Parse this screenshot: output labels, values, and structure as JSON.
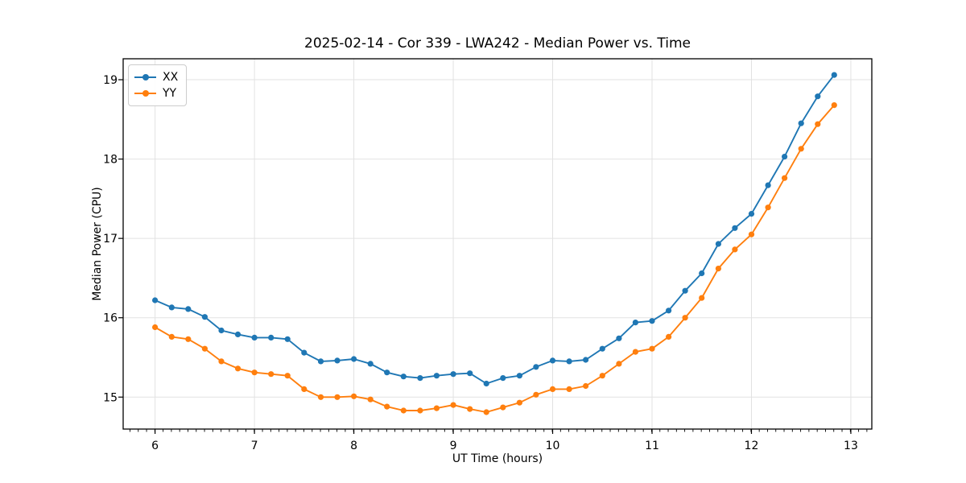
{
  "chart_data": {
    "type": "line",
    "title": "2025-02-14 - Cor 339 - LWA242 - Median Power vs. Time",
    "xlabel": "UT Time (hours)",
    "ylabel": "Median Power (CPU)",
    "xlim": [
      5.679,
      13.211
    ],
    "ylim": [
      14.597,
      19.264
    ],
    "xticks": [
      6,
      7,
      8,
      9,
      10,
      11,
      12,
      13
    ],
    "yticks": [
      15,
      16,
      17,
      18,
      19
    ],
    "x_minor_tick_interval": 0.0833,
    "grid": true,
    "legend_position": "upper left",
    "background": "#ffffff",
    "grid_color": "#e2e2e2",
    "x": [
      6.0,
      6.167,
      6.333,
      6.5,
      6.667,
      6.833,
      7.0,
      7.167,
      7.333,
      7.5,
      7.667,
      7.833,
      8.0,
      8.167,
      8.333,
      8.5,
      8.667,
      8.833,
      9.0,
      9.167,
      9.333,
      9.5,
      9.667,
      9.833,
      10.0,
      10.167,
      10.333,
      10.5,
      10.667,
      10.833,
      11.0,
      11.167,
      11.333,
      11.5,
      11.667,
      11.833,
      12.0,
      12.167,
      12.333,
      12.5,
      12.667,
      12.833
    ],
    "series": [
      {
        "name": "XX",
        "color": "#1f77b4",
        "values": [
          16.22,
          16.13,
          16.11,
          16.01,
          15.84,
          15.79,
          15.75,
          15.75,
          15.73,
          15.56,
          15.45,
          15.46,
          15.48,
          15.42,
          15.31,
          15.26,
          15.24,
          15.27,
          15.29,
          15.3,
          15.17,
          15.24,
          15.27,
          15.38,
          15.46,
          15.45,
          15.47,
          15.61,
          15.74,
          15.94,
          15.96,
          16.09,
          16.34,
          16.56,
          16.93,
          17.13,
          17.31,
          17.67,
          18.03,
          18.45,
          18.79,
          19.06
        ]
      },
      {
        "name": "YY",
        "color": "#ff7f0e",
        "values": [
          15.88,
          15.76,
          15.73,
          15.61,
          15.45,
          15.36,
          15.31,
          15.29,
          15.27,
          15.1,
          15.0,
          15.0,
          15.01,
          14.97,
          14.88,
          14.83,
          14.83,
          14.86,
          14.9,
          14.85,
          14.81,
          14.87,
          14.93,
          15.03,
          15.1,
          15.1,
          15.14,
          15.27,
          15.42,
          15.57,
          15.61,
          15.76,
          16.0,
          16.25,
          16.62,
          16.86,
          17.05,
          17.39,
          17.76,
          18.13,
          18.44,
          18.68
        ]
      }
    ]
  }
}
